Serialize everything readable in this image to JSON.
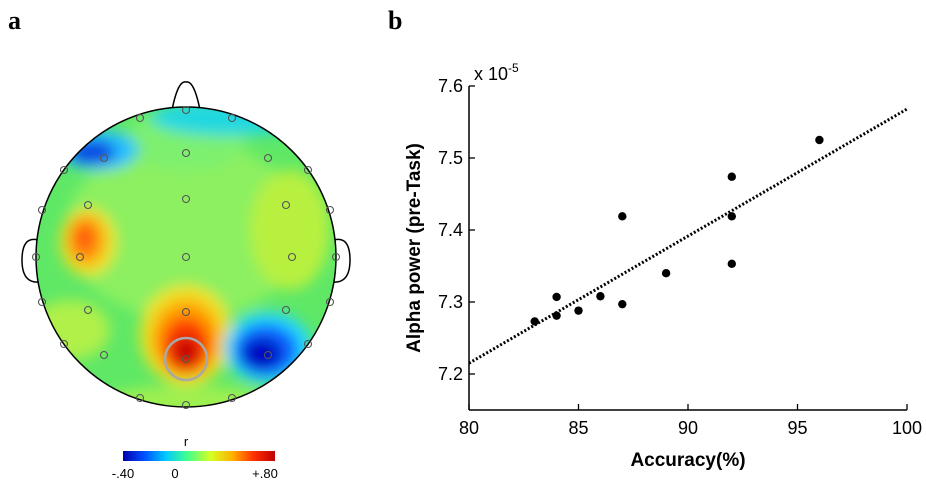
{
  "panels": {
    "a": "a",
    "b": "b"
  },
  "chart_data": [
    {
      "type": "heatmap",
      "panel": "a",
      "colorbar": {
        "label": "r",
        "tick_labels": [
          "-.40",
          "0",
          "+.80"
        ],
        "range": [
          -0.4,
          0.8
        ],
        "colormap": [
          "#0000b0",
          "#0050ff",
          "#00c8ff",
          "#40ff90",
          "#d8ff20",
          "#ffb000",
          "#ff3000",
          "#c00000"
        ]
      },
      "regions": [
        {
          "area": "left-temporal",
          "value": 0.55
        },
        {
          "area": "parieto-occipital-midline",
          "value": 0.8
        },
        {
          "area": "right-occipital",
          "value": -0.4
        },
        {
          "area": "left-frontal",
          "value": -0.2
        }
      ]
    },
    {
      "type": "scatter",
      "panel": "b",
      "xlabel": "Accuracy(%)",
      "ylabel": "Alpha power (pre-Task)",
      "y_multiplier": "x 10",
      "y_exponent": "-5",
      "xlim": [
        80,
        100
      ],
      "ylim": [
        7.15,
        7.6
      ],
      "xticks": [
        80,
        85,
        90,
        95,
        100
      ],
      "xtick_labels": [
        "80",
        "85",
        "90",
        "95",
        "100"
      ],
      "yticks": [
        7.2,
        7.3,
        7.4,
        7.5,
        7.6
      ],
      "ytick_labels": [
        "7.2",
        "7.3",
        "7.4",
        "7.5",
        "7.6"
      ],
      "points": [
        {
          "x": 83,
          "y": 7.273
        },
        {
          "x": 84,
          "y": 7.307
        },
        {
          "x": 84,
          "y": 7.281
        },
        {
          "x": 85,
          "y": 7.288
        },
        {
          "x": 86,
          "y": 7.308
        },
        {
          "x": 87,
          "y": 7.297
        },
        {
          "x": 87,
          "y": 7.419
        },
        {
          "x": 89,
          "y": 7.34
        },
        {
          "x": 92,
          "y": 7.474
        },
        {
          "x": 92,
          "y": 7.419
        },
        {
          "x": 92,
          "y": 7.353
        },
        {
          "x": 96,
          "y": 7.525
        }
      ],
      "fit_line": {
        "x": [
          80,
          100
        ],
        "y": [
          7.215,
          7.568
        ],
        "style": "dotted"
      }
    }
  ]
}
